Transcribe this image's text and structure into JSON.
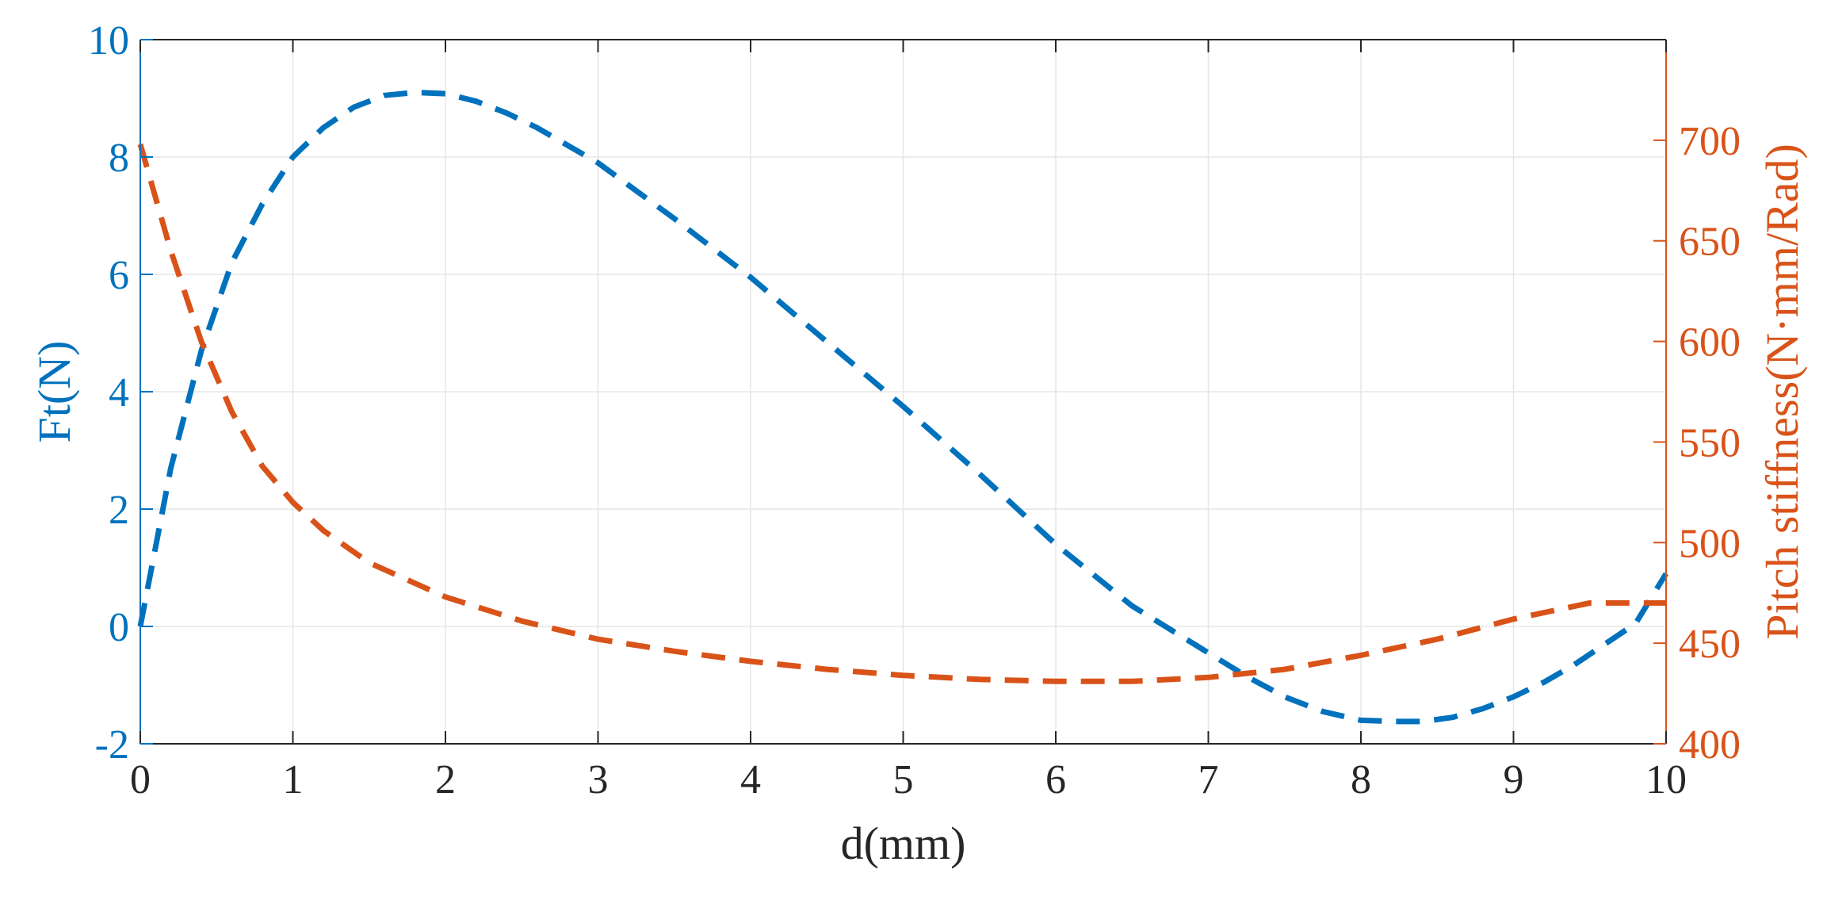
{
  "chart_data": {
    "type": "line",
    "title": "",
    "xlabel": "d(mm)",
    "xlim": [
      0,
      10
    ],
    "xticks": [
      0,
      1,
      2,
      3,
      4,
      5,
      6,
      7,
      8,
      9,
      10
    ],
    "xtick_labels": [
      "0",
      "1",
      "2",
      "3",
      "4",
      "5",
      "6",
      "7",
      "8",
      "9",
      "10"
    ],
    "ylabel_left": "Ft(N)",
    "ylim_left": [
      -2,
      10
    ],
    "yticks_left": [
      -2,
      0,
      2,
      4,
      6,
      8,
      10
    ],
    "ytick_labels_left": [
      "-2",
      "0",
      "2",
      "4",
      "6",
      "8",
      "10"
    ],
    "ylabel_right": "Pitch stiffness(N·mm/Rad)",
    "ylim_right": [
      400,
      750
    ],
    "yticks_right": [
      400,
      450,
      500,
      550,
      600,
      650,
      700
    ],
    "ytick_labels_right": [
      "400",
      "450",
      "500",
      "550",
      "600",
      "650",
      "700"
    ],
    "grid": true,
    "line_style": "dashed",
    "series": [
      {
        "axis": "left",
        "color": "#0072BD",
        "x": [
          0,
          0.2,
          0.4,
          0.6,
          0.8,
          1.0,
          1.2,
          1.4,
          1.6,
          1.8,
          2.0,
          2.2,
          2.4,
          2.6,
          2.8,
          3.0,
          3.5,
          4.0,
          4.5,
          5.0,
          5.5,
          6.0,
          6.5,
          7.0,
          7.25,
          7.5,
          7.75,
          8.0,
          8.25,
          8.4,
          8.6,
          8.8,
          9.0,
          9.2,
          9.4,
          9.6,
          9.8,
          10.0
        ],
        "y": [
          0.0,
          2.7,
          4.7,
          6.2,
          7.2,
          8.0,
          8.5,
          8.85,
          9.05,
          9.1,
          9.08,
          8.95,
          8.75,
          8.5,
          8.2,
          7.9,
          6.95,
          5.95,
          4.85,
          3.75,
          2.6,
          1.4,
          0.35,
          -0.45,
          -0.85,
          -1.2,
          -1.45,
          -1.6,
          -1.62,
          -1.62,
          -1.55,
          -1.4,
          -1.2,
          -0.95,
          -0.65,
          -0.3,
          0.05,
          0.9
        ]
      },
      {
        "axis": "right",
        "color": "#D95319",
        "x": [
          0,
          0.2,
          0.4,
          0.6,
          0.8,
          1.0,
          1.2,
          1.5,
          2.0,
          2.5,
          3.0,
          3.5,
          4.0,
          4.5,
          5.0,
          5.5,
          6.0,
          6.5,
          7.0,
          7.5,
          8.0,
          8.5,
          9.0,
          9.5,
          10.0
        ],
        "y": [
          698,
          645,
          600,
          565,
          538,
          520,
          506,
          490,
          473,
          461,
          452,
          446,
          441,
          437,
          434,
          432,
          431,
          431,
          433,
          437,
          444,
          452,
          462,
          470,
          470
        ]
      }
    ]
  }
}
